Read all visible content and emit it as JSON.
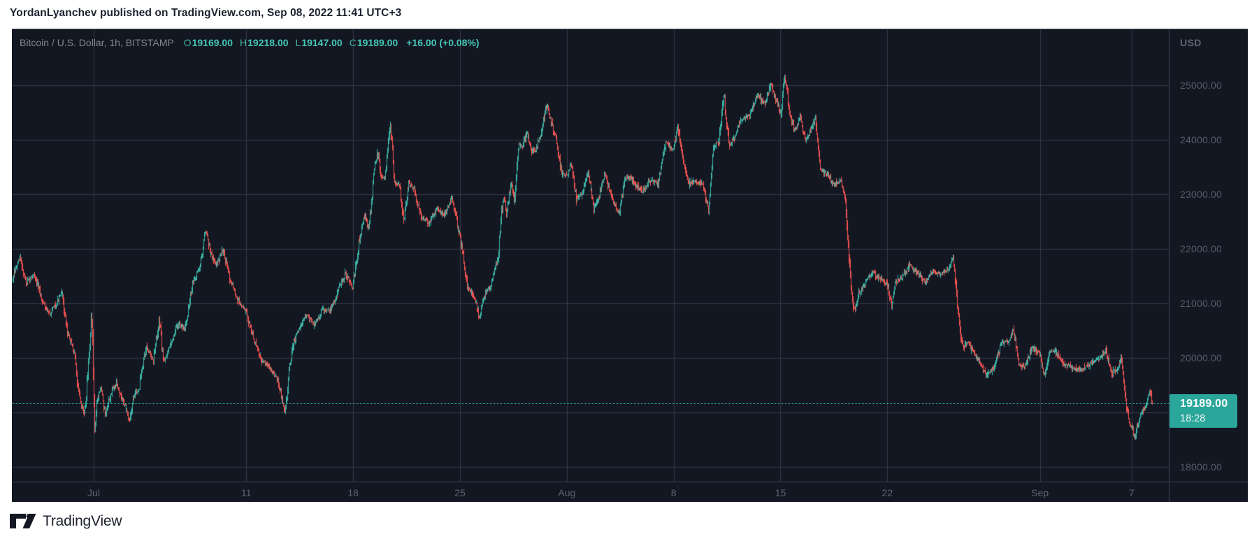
{
  "header": {
    "attribution": "YordanLyanchev published on TradingView.com, Sep 08, 2022 11:41 UTC+3"
  },
  "footer": {
    "brand": "TradingView"
  },
  "chart": {
    "legend": {
      "symbol_title": "Bitcoin / U.S. Dollar, 1h, BITSTAMP",
      "ohlc": [
        {
          "key": "O",
          "value": "19169.00"
        },
        {
          "key": "H",
          "value": "19218.00"
        },
        {
          "key": "L",
          "value": "19147.00"
        },
        {
          "key": "C",
          "value": "19189.00"
        }
      ],
      "change": "+16.00 (+0.08%)"
    },
    "price_axis": {
      "unit": "USD",
      "tick_labels": [
        "25000.00",
        "24000.00",
        "23000.00",
        "22000.00",
        "21000.00",
        "20000.00",
        "19000.00",
        "18000.00"
      ],
      "last": {
        "price": "19189.00",
        "countdown": "18:28"
      }
    },
    "time_axis": {
      "tick_labels": [
        "Jul",
        "11",
        "18",
        "25",
        "Aug",
        "8",
        "15",
        "22",
        "Sep",
        "7"
      ]
    },
    "colors": {
      "background": "#131722",
      "grid": "#343b49",
      "axis_border": "#3a4150",
      "up_candle": "#3cb5a7",
      "down_candle": "#ef5350",
      "accent_teal": "#2aa79a",
      "legend_value": "#45c7b7",
      "axis_text": "#5d6370"
    }
  },
  "chart_data": {
    "type": "candlestick",
    "title": "Bitcoin / U.S. Dollar, 1h, BITSTAMP",
    "interval": "1h",
    "exchange": "BITSTAMP",
    "unit": "USD",
    "last_bar": {
      "open": 19169,
      "high": 19218,
      "low": 19147,
      "close": 19189,
      "change": 16.0,
      "change_pct": 0.08
    },
    "current_price": 19189,
    "bar_countdown": "18:28",
    "ylim": [
      17730,
      26030
    ],
    "y_ticks": [
      25000,
      24000,
      23000,
      22000,
      21000,
      20000,
      19000,
      18000
    ],
    "day_zero": "2022-07-01",
    "visible_day_range": [
      -5.33,
      70.5
    ],
    "x_ticks": [
      {
        "label": "Jul",
        "day": 0
      },
      {
        "label": "11",
        "day": 10
      },
      {
        "label": "18",
        "day": 17
      },
      {
        "label": "25",
        "day": 24
      },
      {
        "label": "Aug",
        "day": 31
      },
      {
        "label": "8",
        "day": 38
      },
      {
        "label": "15",
        "day": 45
      },
      {
        "label": "22",
        "day": 52
      },
      {
        "label": "Sep",
        "day": 62
      },
      {
        "label": "7",
        "day": 68
      }
    ],
    "price_path": [
      [
        -5.35,
        21400
      ],
      [
        -5.1,
        21600
      ],
      [
        -4.8,
        21850
      ],
      [
        -4.4,
        21350
      ],
      [
        -3.9,
        21550
      ],
      [
        -3.4,
        21100
      ],
      [
        -2.9,
        20800
      ],
      [
        -2.4,
        21000
      ],
      [
        -2.05,
        21200
      ],
      [
        -1.7,
        20450
      ],
      [
        -1.25,
        20100
      ],
      [
        -0.95,
        19350
      ],
      [
        -0.65,
        18950
      ],
      [
        -0.5,
        19150
      ],
      [
        -0.3,
        20050
      ],
      [
        -0.1,
        20850
      ],
      [
        0.08,
        18700
      ],
      [
        0.25,
        19250
      ],
      [
        0.5,
        19450
      ],
      [
        0.8,
        18900
      ],
      [
        1.05,
        19250
      ],
      [
        1.5,
        19550
      ],
      [
        1.8,
        19300
      ],
      [
        2.1,
        19100
      ],
      [
        2.35,
        18820
      ],
      [
        2.6,
        19250
      ],
      [
        3.0,
        19450
      ],
      [
        3.5,
        20250
      ],
      [
        3.95,
        19900
      ],
      [
        4.3,
        20720
      ],
      [
        4.6,
        19950
      ],
      [
        5.0,
        20200
      ],
      [
        5.5,
        20600
      ],
      [
        6.0,
        20550
      ],
      [
        6.5,
        21350
      ],
      [
        7.0,
        21700
      ],
      [
        7.35,
        22380
      ],
      [
        7.7,
        21900
      ],
      [
        8.1,
        21700
      ],
      [
        8.5,
        22000
      ],
      [
        9.0,
        21400
      ],
      [
        9.5,
        21050
      ],
      [
        10.0,
        20850
      ],
      [
        10.5,
        20350
      ],
      [
        11.0,
        19950
      ],
      [
        11.5,
        19850
      ],
      [
        12.0,
        19650
      ],
      [
        12.3,
        19350
      ],
      [
        12.55,
        18950
      ],
      [
        12.75,
        19550
      ],
      [
        13.05,
        20200
      ],
      [
        13.5,
        20550
      ],
      [
        14.0,
        20800
      ],
      [
        14.5,
        20600
      ],
      [
        15.0,
        20900
      ],
      [
        15.5,
        20850
      ],
      [
        16.0,
        21200
      ],
      [
        16.5,
        21550
      ],
      [
        17.0,
        21300
      ],
      [
        17.5,
        22250
      ],
      [
        17.8,
        22650
      ],
      [
        18.05,
        22350
      ],
      [
        18.4,
        23450
      ],
      [
        18.65,
        23780
      ],
      [
        18.85,
        23350
      ],
      [
        19.1,
        23300
      ],
      [
        19.45,
        24270
      ],
      [
        19.75,
        23250
      ],
      [
        20.05,
        23150
      ],
      [
        20.35,
        22500
      ],
      [
        20.65,
        23200
      ],
      [
        21.0,
        23100
      ],
      [
        21.5,
        22600
      ],
      [
        22.0,
        22450
      ],
      [
        22.5,
        22750
      ],
      [
        23.0,
        22600
      ],
      [
        23.5,
        22950
      ],
      [
        24.0,
        22250
      ],
      [
        24.5,
        21350
      ],
      [
        25.0,
        21050
      ],
      [
        25.3,
        20760
      ],
      [
        25.65,
        21150
      ],
      [
        26.0,
        21300
      ],
      [
        26.5,
        21850
      ],
      [
        26.85,
        22950
      ],
      [
        27.1,
        22650
      ],
      [
        27.35,
        23200
      ],
      [
        27.6,
        22900
      ],
      [
        27.85,
        23900
      ],
      [
        28.1,
        23850
      ],
      [
        28.4,
        24150
      ],
      [
        28.7,
        23800
      ],
      [
        29.0,
        23800
      ],
      [
        29.4,
        24200
      ],
      [
        29.7,
        24640
      ],
      [
        30.0,
        24350
      ],
      [
        30.4,
        23900
      ],
      [
        30.7,
        23350
      ],
      [
        31.05,
        23350
      ],
      [
        31.35,
        23550
      ],
      [
        31.65,
        22900
      ],
      [
        32.0,
        23000
      ],
      [
        32.4,
        23450
      ],
      [
        32.8,
        22750
      ],
      [
        33.1,
        22900
      ],
      [
        33.5,
        23400
      ],
      [
        34.0,
        22900
      ],
      [
        34.45,
        22620
      ],
      [
        34.8,
        23300
      ],
      [
        35.2,
        23300
      ],
      [
        35.6,
        23150
      ],
      [
        36.0,
        23050
      ],
      [
        36.5,
        23250
      ],
      [
        37.0,
        23200
      ],
      [
        37.5,
        23950
      ],
      [
        38.0,
        23800
      ],
      [
        38.3,
        24250
      ],
      [
        38.65,
        23600
      ],
      [
        39.0,
        23200
      ],
      [
        39.5,
        23250
      ],
      [
        40.0,
        23150
      ],
      [
        40.3,
        22700
      ],
      [
        40.65,
        23900
      ],
      [
        41.0,
        23950
      ],
      [
        41.3,
        24880
      ],
      [
        41.65,
        23900
      ],
      [
        42.0,
        24050
      ],
      [
        42.5,
        24400
      ],
      [
        43.0,
        24450
      ],
      [
        43.5,
        24820
      ],
      [
        44.0,
        24650
      ],
      [
        44.4,
        25030
      ],
      [
        44.7,
        24750
      ],
      [
        45.05,
        24450
      ],
      [
        45.3,
        25180
      ],
      [
        45.65,
        24400
      ],
      [
        46.0,
        24150
      ],
      [
        46.3,
        24430
      ],
      [
        46.65,
        23980
      ],
      [
        47.0,
        24150
      ],
      [
        47.3,
        24400
      ],
      [
        47.65,
        23450
      ],
      [
        48.0,
        23380
      ],
      [
        48.5,
        23180
      ],
      [
        49.0,
        23250
      ],
      [
        49.3,
        22850
      ],
      [
        49.6,
        21350
      ],
      [
        49.85,
        20840
      ],
      [
        50.1,
        21150
      ],
      [
        50.5,
        21320
      ],
      [
        51.0,
        21560
      ],
      [
        51.5,
        21450
      ],
      [
        52.0,
        21380
      ],
      [
        52.3,
        20950
      ],
      [
        52.6,
        21420
      ],
      [
        53.0,
        21480
      ],
      [
        53.5,
        21700
      ],
      [
        54.0,
        21560
      ],
      [
        54.5,
        21380
      ],
      [
        55.0,
        21600
      ],
      [
        55.5,
        21540
      ],
      [
        56.0,
        21620
      ],
      [
        56.35,
        21830
      ],
      [
        56.65,
        20850
      ],
      [
        56.95,
        20180
      ],
      [
        57.3,
        20280
      ],
      [
        57.7,
        20080
      ],
      [
        58.05,
        19950
      ],
      [
        58.5,
        19640
      ],
      [
        59.0,
        19820
      ],
      [
        59.5,
        20280
      ],
      [
        60.0,
        20320
      ],
      [
        60.3,
        20540
      ],
      [
        60.65,
        19850
      ],
      [
        61.0,
        19830
      ],
      [
        61.5,
        20180
      ],
      [
        62.0,
        20060
      ],
      [
        62.3,
        19680
      ],
      [
        62.65,
        20080
      ],
      [
        63.0,
        20140
      ],
      [
        63.5,
        19880
      ],
      [
        64.0,
        19850
      ],
      [
        64.5,
        19780
      ],
      [
        65.0,
        19820
      ],
      [
        65.5,
        19940
      ],
      [
        66.0,
        20010
      ],
      [
        66.35,
        20140
      ],
      [
        66.7,
        19720
      ],
      [
        67.05,
        19780
      ],
      [
        67.35,
        19980
      ],
      [
        67.6,
        19350
      ],
      [
        67.85,
        18820
      ],
      [
        68.05,
        18720
      ],
      [
        68.25,
        18540
      ],
      [
        68.5,
        18900
      ],
      [
        68.8,
        19060
      ],
      [
        69.0,
        19160
      ],
      [
        69.2,
        19430
      ],
      [
        69.35,
        19189
      ]
    ]
  }
}
